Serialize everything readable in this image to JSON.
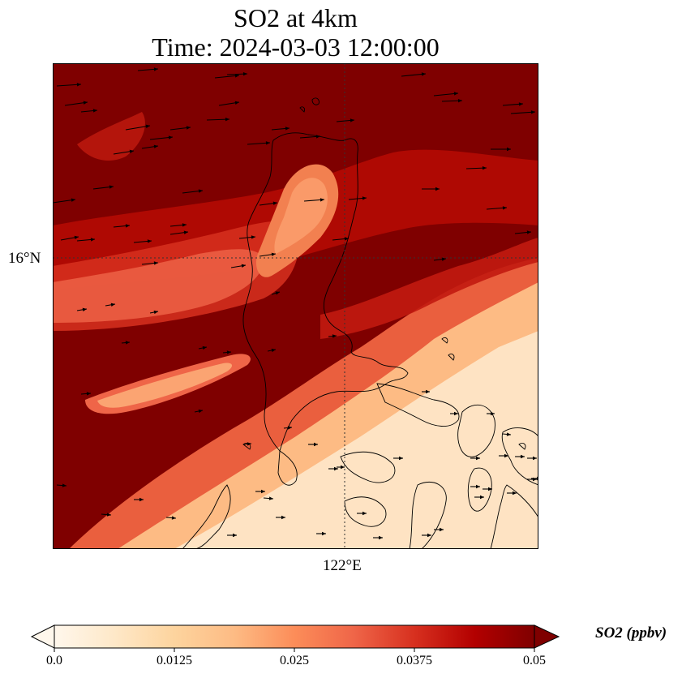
{
  "title": {
    "line1": "SO2 at 4km",
    "line2": "Time: 2024-03-03 12:00:00"
  },
  "axes": {
    "lat_tick": "16°N",
    "lon_tick": "122°E"
  },
  "colorbar": {
    "label": "SO2 (ppbv)",
    "ticks": [
      "0.0",
      "0.0125",
      "0.025",
      "0.0375",
      "0.05"
    ],
    "colormap": "OrRd",
    "stops": [
      "#fff7ec",
      "#fee8c8",
      "#fdd49e",
      "#fdbb84",
      "#fc8d59",
      "#ef6548",
      "#d7301f",
      "#b30000",
      "#7f0000"
    ]
  },
  "map": {
    "field": "SO2 concentration",
    "gridlines": "dotted",
    "wind_vectors": "shown"
  }
}
